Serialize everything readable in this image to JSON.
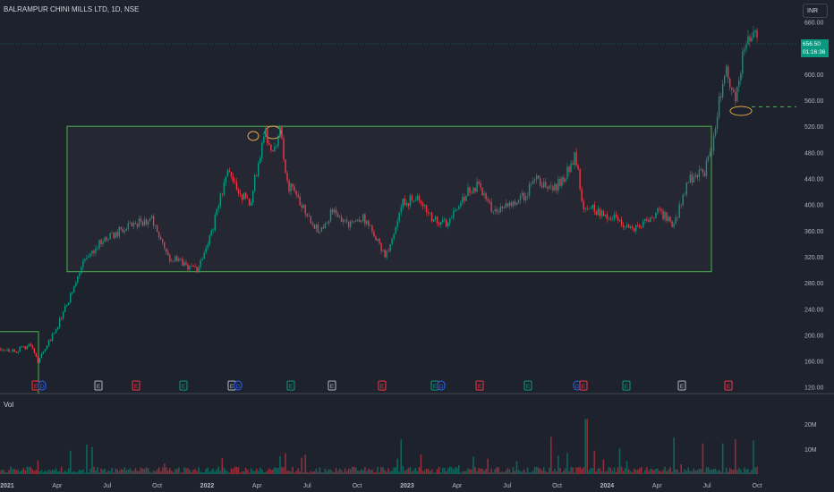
{
  "header": {
    "symbol_title": "BALRAMPUR CHINI MILLS LTD, 1D, NSE",
    "currency": "INR",
    "volume_label": "Vol"
  },
  "last_price": {
    "value": "656.50",
    "countdown": "01:16:36"
  },
  "colors": {
    "background": "#1e222d",
    "up": "#089981",
    "down": "#f23645",
    "box": "#4caf50",
    "axis_text": "#b2b5be",
    "annotation": "#e0a64b"
  },
  "chart_data": {
    "type": "candlestick",
    "title": "BALRAMPUR CHINI MILLS LTD, 1D, NSE",
    "y_axis": {
      "range": [
        110,
        700
      ],
      "ticks": [
        "680.00",
        "640.00",
        "600.00",
        "560.00",
        "520.00",
        "480.00",
        "440.00",
        "400.00",
        "360.00",
        "320.00",
        "280.00",
        "240.00",
        "200.00",
        "160.00",
        "120.00"
      ]
    },
    "x_axis": {
      "ticks": [
        "2021",
        "Apr",
        "Jul",
        "Oct",
        "2022",
        "Apr",
        "Jul",
        "Oct",
        "2023",
        "Apr",
        "Jul",
        "Oct",
        "2024",
        "Apr",
        "Jul",
        "Oct"
      ]
    },
    "volume_axis": {
      "range": [
        0,
        25000000
      ],
      "ticks": [
        "20M",
        "10M"
      ]
    },
    "price_path": [
      [
        0.0,
        180
      ],
      [
        0.02,
        175
      ],
      [
        0.04,
        185
      ],
      [
        0.05,
        160
      ],
      [
        0.07,
        200
      ],
      [
        0.09,
        250
      ],
      [
        0.11,
        310
      ],
      [
        0.13,
        340
      ],
      [
        0.16,
        360
      ],
      [
        0.18,
        370
      ],
      [
        0.2,
        380
      ],
      [
        0.22,
        320
      ],
      [
        0.24,
        310
      ],
      [
        0.26,
        300
      ],
      [
        0.28,
        360
      ],
      [
        0.3,
        450
      ],
      [
        0.31,
        430
      ],
      [
        0.33,
        400
      ],
      [
        0.35,
        515
      ],
      [
        0.36,
        480
      ],
      [
        0.37,
        515
      ],
      [
        0.38,
        430
      ],
      [
        0.4,
        400
      ],
      [
        0.42,
        360
      ],
      [
        0.44,
        390
      ],
      [
        0.46,
        370
      ],
      [
        0.48,
        380
      ],
      [
        0.5,
        340
      ],
      [
        0.51,
        320
      ],
      [
        0.53,
        400
      ],
      [
        0.55,
        410
      ],
      [
        0.57,
        380
      ],
      [
        0.59,
        370
      ],
      [
        0.61,
        410
      ],
      [
        0.63,
        430
      ],
      [
        0.65,
        390
      ],
      [
        0.67,
        400
      ],
      [
        0.69,
        410
      ],
      [
        0.71,
        440
      ],
      [
        0.73,
        420
      ],
      [
        0.75,
        450
      ],
      [
        0.76,
        480
      ],
      [
        0.77,
        400
      ],
      [
        0.79,
        390
      ],
      [
        0.81,
        380
      ],
      [
        0.83,
        360
      ],
      [
        0.85,
        370
      ],
      [
        0.87,
        390
      ],
      [
        0.89,
        370
      ],
      [
        0.91,
        440
      ],
      [
        0.93,
        450
      ],
      [
        0.94,
        480
      ],
      [
        0.95,
        560
      ],
      [
        0.96,
        610
      ],
      [
        0.97,
        560
      ],
      [
        0.98,
        620
      ],
      [
        0.99,
        656.5
      ],
      [
        1.0,
        656.5
      ]
    ],
    "last_value": 656.5,
    "annotations": {
      "range_box": {
        "price_top": 520,
        "price_bottom": 297,
        "from": "Dec 2020 approx",
        "to": "Aug 2024 approx"
      },
      "small_box": {
        "price_top": 205,
        "price_bottom": 110
      },
      "support_line": 550
    },
    "event_markers": [
      "E",
      "D",
      "E",
      "E",
      "E",
      "E",
      "D",
      "E",
      "E",
      "E",
      "E",
      "D",
      "E",
      "E",
      "D",
      "E",
      "E",
      "E",
      "E"
    ]
  }
}
